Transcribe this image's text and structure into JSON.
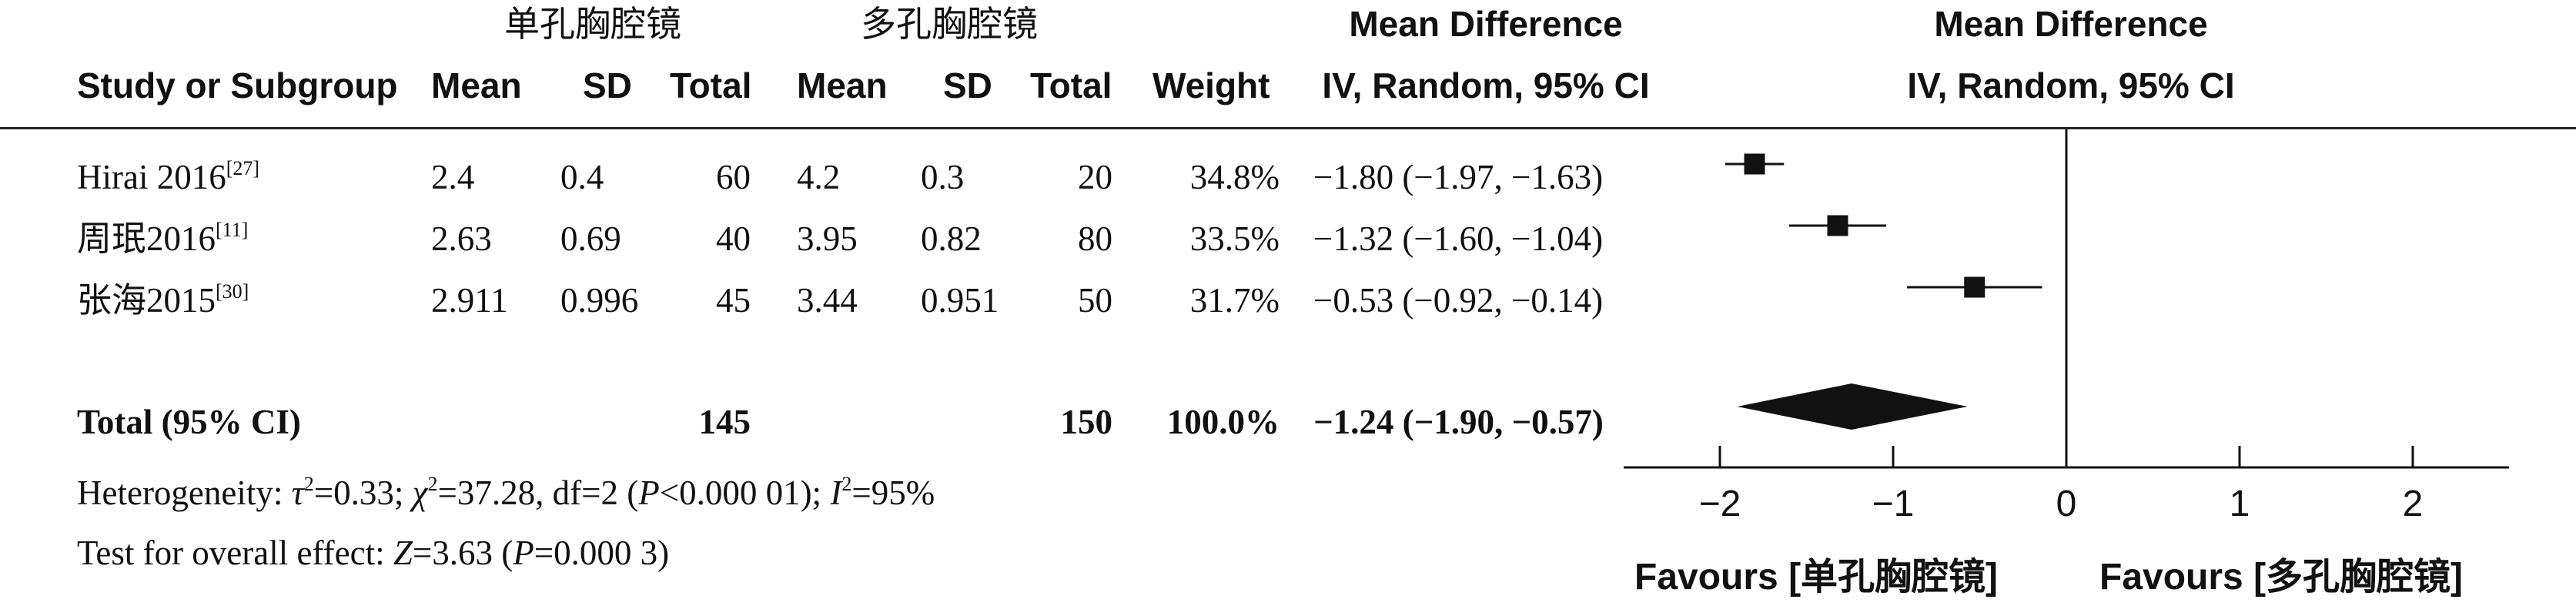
{
  "header": {
    "group1": "单孔胸腔镜",
    "group2": "多孔胸腔镜",
    "effect_title": "Mean Difference",
    "effect_method": "IV, Random, 95% CI",
    "plot_title": "Mean Difference",
    "plot_method": "IV, Random, 95% CI",
    "cols": {
      "study": "Study or Subgroup",
      "mean1": "Mean",
      "sd1": "SD",
      "total1": "Total",
      "mean2": "Mean",
      "sd2": "SD",
      "total2": "Total",
      "weight": "Weight"
    }
  },
  "studies": [
    {
      "name": "Hirai 2016",
      "ref": "[27]",
      "mean1": "2.4",
      "sd1": "0.4",
      "total1": "60",
      "mean2": "4.2",
      "sd2": "0.3",
      "total2": "20",
      "weight": "34.8%",
      "ci_text": "−1.80 (−1.97, −1.63)"
    },
    {
      "name": "周珉2016",
      "ref": "[11]",
      "mean1": "2.63",
      "sd1": "0.69",
      "total1": "40",
      "mean2": "3.95",
      "sd2": "0.82",
      "total2": "80",
      "weight": "33.5%",
      "ci_text": "−1.32 (−1.60, −1.04)"
    },
    {
      "name": "张海2015",
      "ref": "[30]",
      "mean1": "2.911",
      "sd1": "0.996",
      "total1": "45",
      "mean2": "3.44",
      "sd2": "0.951",
      "total2": "50",
      "weight": "31.7%",
      "ci_text": "−0.53 (−0.92, −0.14)"
    }
  ],
  "total": {
    "label": "Total (95% CI)",
    "total1": "145",
    "total2": "150",
    "weight": "100.0%",
    "ci_text": "−1.24 (−1.90, −0.57)"
  },
  "footer": {
    "het_prefix": "Heterogeneity: ",
    "tau": "τ",
    "tau_val": "=0.33; ",
    "chi": "χ",
    "chi_val": "=37.28, df=2 (",
    "p_label": "P",
    "p_val": "<0.000 01); ",
    "i_label": "I",
    "i_val": "=95%",
    "sq": "2",
    "overall_prefix": "Test for overall effect: ",
    "z_label": "Z",
    "z_val": "=3.63 (",
    "p2_label": "P",
    "p2_val": "=0.000 3)"
  },
  "favours_left": "Favours [单孔胸腔镜]",
  "favours_right": "Favours [多孔胸腔镜]",
  "chart_data": {
    "type": "scatter",
    "subtype": "forest_plot",
    "xlim": [
      -2,
      2
    ],
    "ticks": [
      -2,
      -1,
      0,
      1,
      2
    ],
    "tick_labels": [
      "−2",
      "−1",
      "0",
      "1",
      "2"
    ],
    "reference_line": 0,
    "studies": [
      {
        "name": "Hirai 2016",
        "estimate": -1.8,
        "lower": -1.97,
        "upper": -1.63,
        "weight": 34.8
      },
      {
        "name": "周珉2016",
        "estimate": -1.32,
        "lower": -1.6,
        "upper": -1.04,
        "weight": 33.5
      },
      {
        "name": "张海2015",
        "estimate": -0.53,
        "lower": -0.92,
        "upper": -0.14,
        "weight": 31.7
      }
    ],
    "pooled": {
      "estimate": -1.24,
      "lower": -1.9,
      "upper": -0.57
    }
  }
}
